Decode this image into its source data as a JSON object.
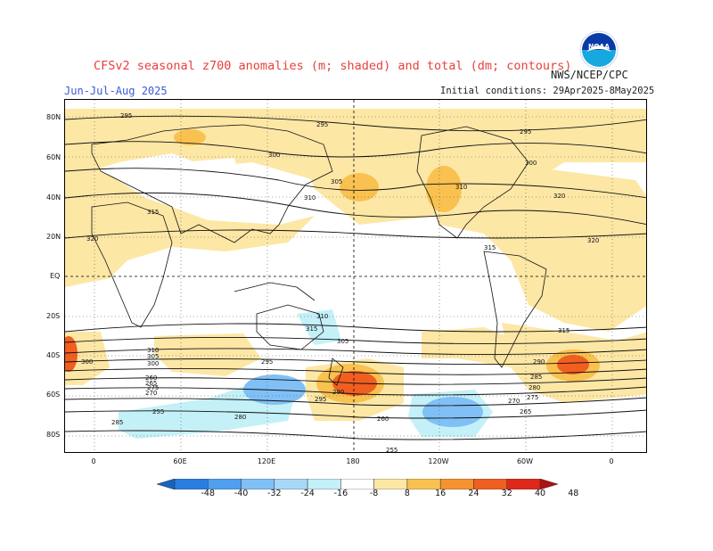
{
  "header": {
    "title": "CFSv2 seasonal z700 anomalies (m; shaded) and total (dm; contours)",
    "subtitle": "Jun-Jul-Aug 2025",
    "initial_conditions": "Initial conditions: 29Apr2025-8May2025",
    "agency": "NWS/NCEP/CPC",
    "logo_text": "NOAA"
  },
  "axes": {
    "lat_labels": [
      "80N",
      "60N",
      "40N",
      "20N",
      "EQ",
      "20S",
      "40S",
      "60S",
      "80S"
    ],
    "lon_labels": [
      "0",
      "60E",
      "120E",
      "180",
      "120W",
      "60W",
      "0"
    ]
  },
  "colorbar": {
    "labels": [
      "-48",
      "-40",
      "-32",
      "-24",
      "-16",
      "-8",
      "8",
      "16",
      "24",
      "32",
      "40",
      "48"
    ],
    "colors": [
      "#1565c0",
      "#2a7ee2",
      "#4e9ff0",
      "#80c0f6",
      "#a8d8f8",
      "#c4f0f8",
      "#ffffff",
      "#fde7a5",
      "#f9c150",
      "#f69330",
      "#f05e20",
      "#e0281a",
      "#b01010"
    ]
  },
  "contour_labels": [
    "295",
    "295",
    "300",
    "305",
    "310",
    "315",
    "320",
    "295",
    "300",
    "310",
    "315",
    "320",
    "310",
    "315",
    "305",
    "300",
    "295",
    "290",
    "285",
    "280",
    "275",
    "270",
    "265",
    "260",
    "255",
    "310",
    "305",
    "300",
    "295",
    "290",
    "285",
    "280",
    "275",
    "270",
    "265",
    "260",
    "255",
    "315",
    "320"
  ],
  "colors": {
    "title": "#e8413c",
    "subtitle": "#3b5bd6"
  }
}
